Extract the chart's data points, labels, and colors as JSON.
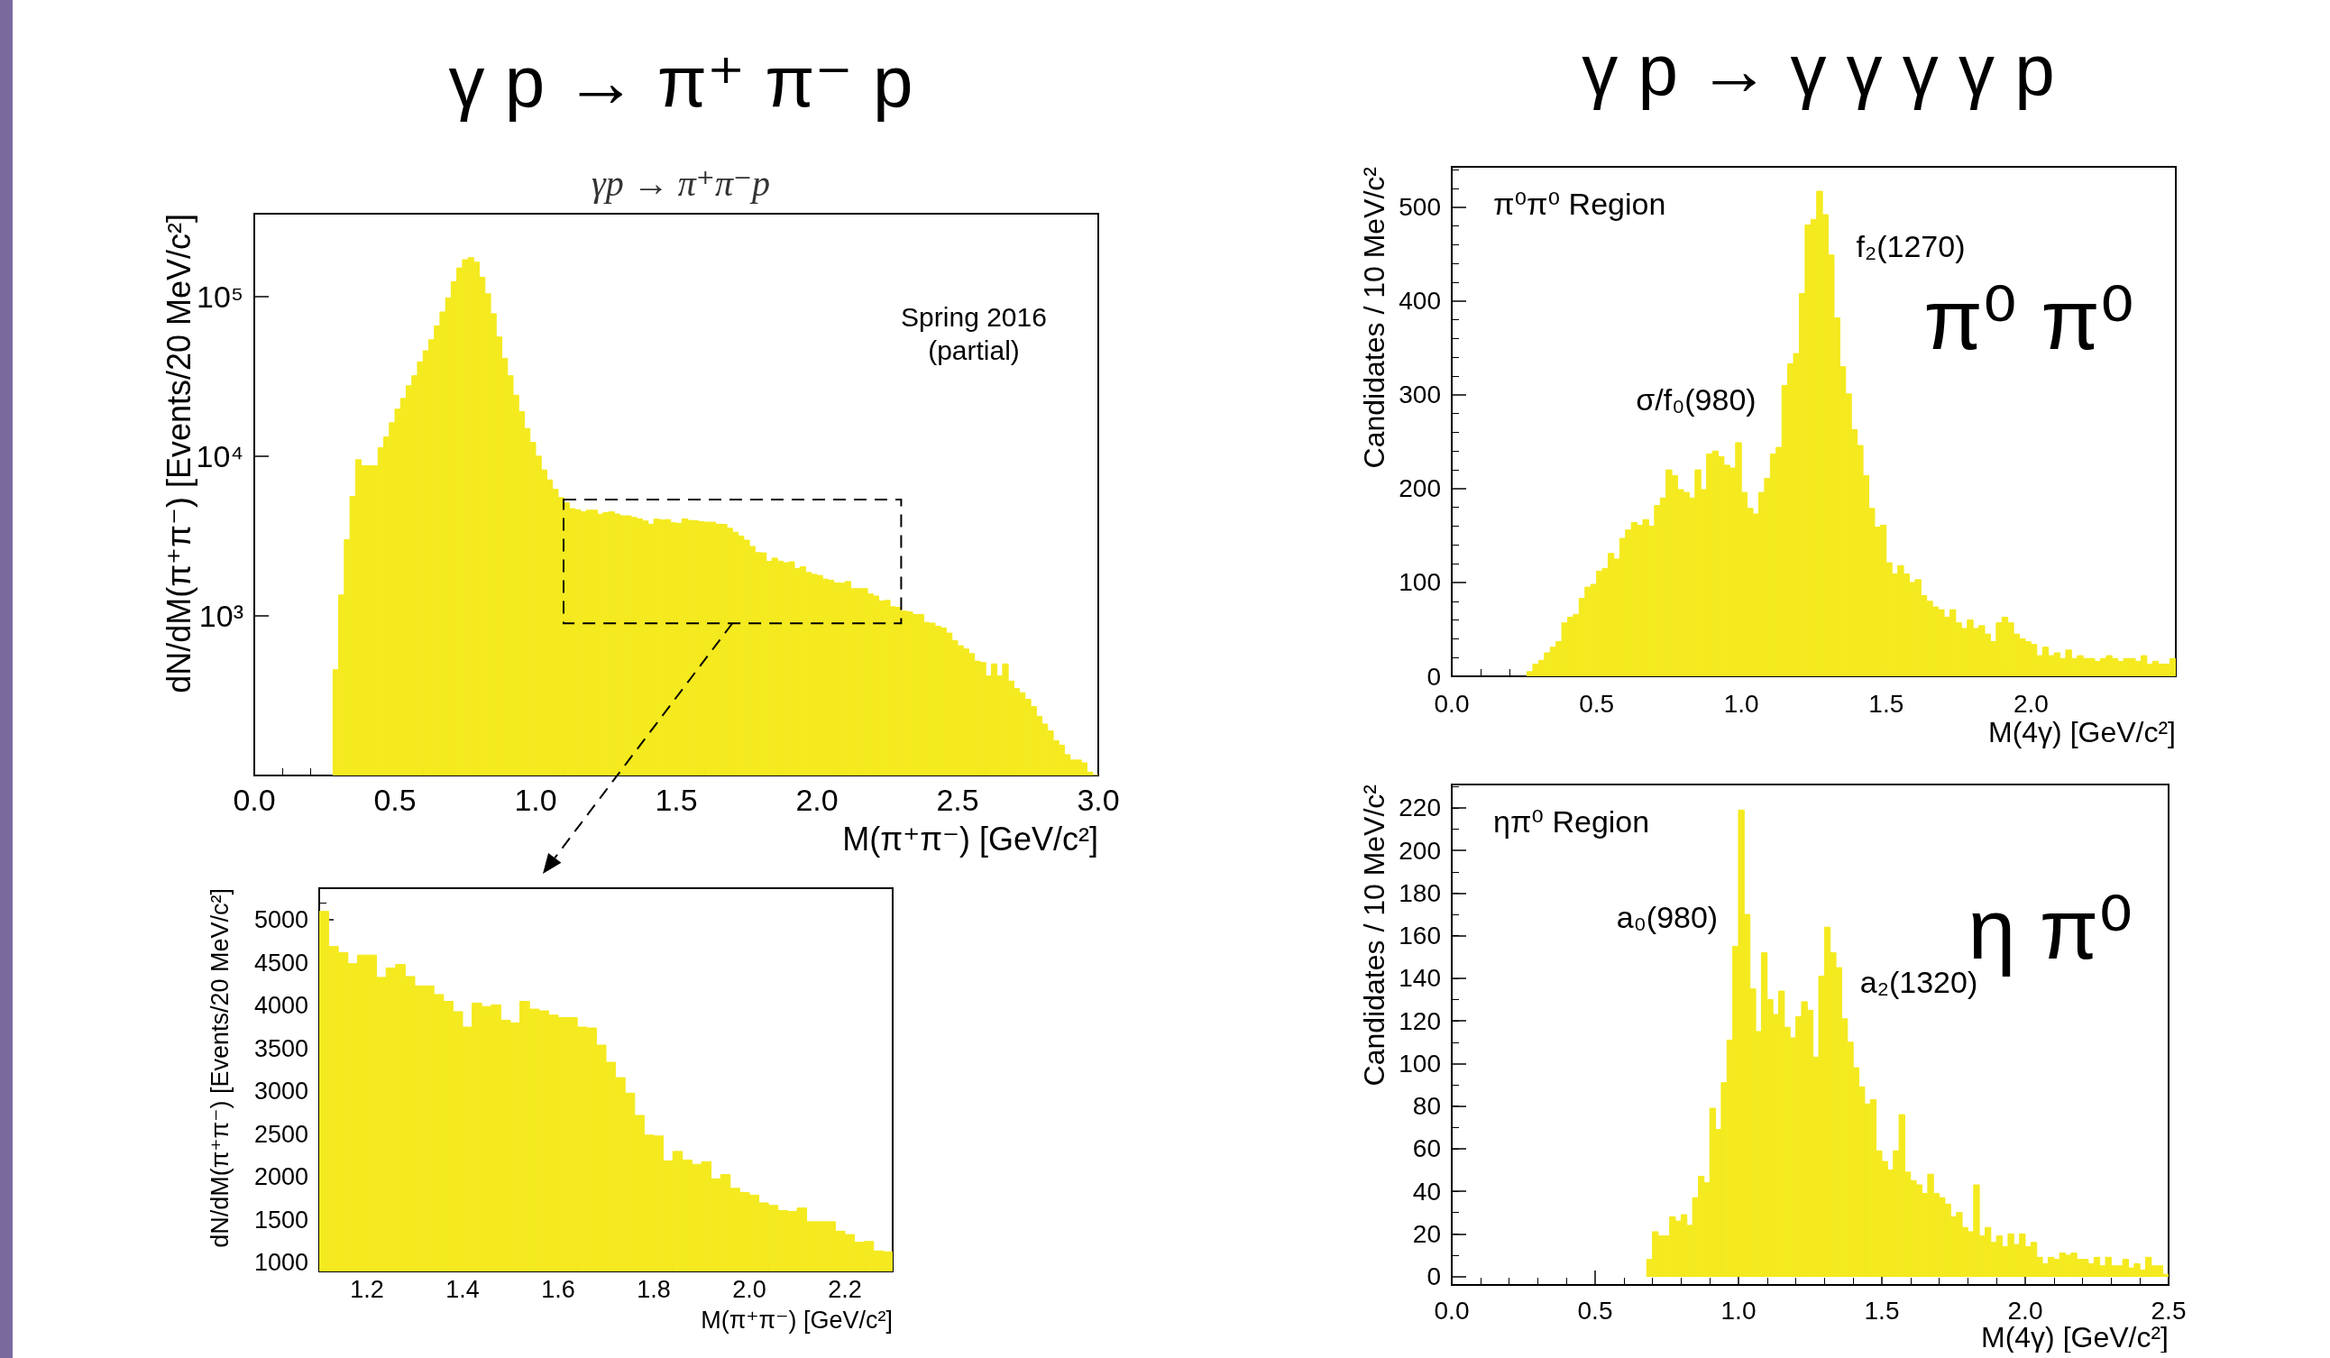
{
  "chart_data": [
    {
      "type": "histogram",
      "title": "γ p → π⁺ π⁻ p",
      "subtitle": "γp → π⁺π⁻p",
      "xlabel": "M(π⁺π⁻) [GeV/c²]",
      "ylabel": "dN/dM(π⁺π⁻) [Events/20 MeV/c²]",
      "color": "#f4ea1f",
      "log": "y",
      "xlim": [
        0,
        3
      ],
      "ylim": [
        100,
        330000
      ],
      "xticks": [
        {
          "value": 0,
          "label": "0.0"
        },
        0.5,
        {
          "value": 1,
          "label": "1.0"
        },
        1.5,
        {
          "value": 2,
          "label": "2.0"
        },
        2.5,
        {
          "value": 3,
          "label": "3.0"
        }
      ],
      "yticks": [
        {
          "value": 1000,
          "label": "10³"
        },
        {
          "value": 10000,
          "label": "10⁴"
        },
        {
          "value": 100000,
          "label": "10⁵"
        }
      ],
      "annotations": [
        "Spring 2016\n(partial)"
      ],
      "bins": [
        0.28,
        0.3,
        0.32,
        0.34,
        0.36,
        0.38,
        0.4,
        0.42,
        0.44,
        0.46,
        0.48,
        0.5,
        0.52,
        0.54,
        0.56,
        0.58,
        0.6,
        0.62,
        0.64,
        0.66,
        0.68,
        0.7,
        0.72,
        0.74,
        0.76,
        0.78,
        0.8,
        0.82,
        0.84,
        0.86,
        0.88,
        0.9,
        0.92,
        0.94,
        0.96,
        0.98,
        1,
        1.02,
        1.04,
        1.06,
        1.08,
        1.1,
        1.12,
        1.14,
        1.16,
        1.18,
        1.2,
        1.22,
        1.24,
        1.26,
        1.28,
        1.3,
        1.32,
        1.34,
        1.36,
        1.38,
        1.4,
        1.42,
        1.44,
        1.46,
        1.48,
        1.5,
        1.52,
        1.54,
        1.56,
        1.58,
        1.6,
        1.62,
        1.64,
        1.66,
        1.68,
        1.7,
        1.72,
        1.74,
        1.76,
        1.78,
        1.8,
        1.82,
        1.84,
        1.86,
        1.88,
        1.9,
        1.92,
        1.94,
        1.96,
        1.98,
        2,
        2.02,
        2.04,
        2.06,
        2.08,
        2.1,
        2.12,
        2.14,
        2.16,
        2.18,
        2.2,
        2.22,
        2.24,
        2.26,
        2.28,
        2.3,
        2.32,
        2.34,
        2.36,
        2.38,
        2.4,
        2.42,
        2.44,
        2.46,
        2.48,
        2.5,
        2.52,
        2.54,
        2.56,
        2.58,
        2.6,
        2.62,
        2.64,
        2.66,
        2.68,
        2.7,
        2.72,
        2.74,
        2.76,
        2.78,
        2.8,
        2.82,
        2.84,
        2.86,
        2.88,
        2.9,
        2.92,
        2.94,
        2.96,
        2.98,
        3
      ],
      "values": [
        460,
        1350,
        3000,
        5600,
        9500,
        8700,
        8700,
        8700,
        11300,
        13200,
        16200,
        19700,
        23000,
        27600,
        31900,
        39000,
        45700,
        53600,
        65500,
        80000,
        98000,
        124000,
        151000,
        170000,
        175000,
        164000,
        132000,
        104000,
        78000,
        55800,
        41000,
        31900,
        24100,
        19000,
        14900,
        12200,
        10000,
        8200,
        7100,
        6200,
        5500,
        5100,
        4690,
        4620,
        4490,
        4590,
        4590,
        4330,
        4440,
        4480,
        4340,
        4230,
        4230,
        4130,
        4050,
        3930,
        3750,
        4030,
        3990,
        4010,
        3830,
        3800,
        4050,
        3960,
        3940,
        3890,
        3860,
        3860,
        3750,
        3740,
        3540,
        3340,
        3160,
        2980,
        2720,
        2490,
        2480,
        2190,
        2300,
        2200,
        2150,
        2180,
        1980,
        2030,
        1870,
        1820,
        1790,
        1700,
        1670,
        1610,
        1600,
        1640,
        1480,
        1480,
        1480,
        1370,
        1330,
        1240,
        1250,
        1140,
        1130,
        1070,
        1060,
        1020,
        1020,
        910,
        900,
        860,
        840,
        780,
        700,
        650,
        620,
        580,
        520,
        510,
        420,
        500,
        420,
        500,
        390,
        350,
        330,
        300,
        270,
        235,
        210,
        190,
        165,
        155,
        135,
        125,
        125,
        120,
        105,
        100
      ]
    },
    {
      "type": "histogram",
      "xlabel": "M(π⁺π⁻) [GeV/c²]",
      "ylabel": "dN/dM(π⁺π⁻) [Events/20 MeV/c²]",
      "color": "#f4ea1f",
      "xlim": [
        1.1,
        2.3
      ],
      "ylim": [
        900,
        5370
      ],
      "xticks": [
        1.2,
        1.4,
        1.6,
        1.8,
        {
          "value": 2,
          "label": "2.0"
        },
        2.2
      ],
      "yticks": [
        1000,
        1500,
        2000,
        2500,
        3000,
        3500,
        4000,
        4500,
        5000
      ],
      "bins": [
        1.1,
        1.12,
        1.14,
        1.16,
        1.18,
        1.2,
        1.22,
        1.24,
        1.26,
        1.28,
        1.3,
        1.32,
        1.34,
        1.36,
        1.38,
        1.4,
        1.42,
        1.44,
        1.46,
        1.48,
        1.5,
        1.52,
        1.54,
        1.56,
        1.58,
        1.6,
        1.62,
        1.64,
        1.66,
        1.68,
        1.7,
        1.72,
        1.74,
        1.76,
        1.78,
        1.8,
        1.82,
        1.84,
        1.86,
        1.88,
        1.9,
        1.92,
        1.94,
        1.96,
        1.98,
        2,
        2.02,
        2.04,
        2.06,
        2.08,
        2.1,
        2.12,
        2.14,
        2.16,
        2.18,
        2.2,
        2.22,
        2.24,
        2.26,
        2.28,
        2.3
      ],
      "values": [
        5100,
        4690,
        4620,
        4490,
        4590,
        4590,
        4330,
        4440,
        4480,
        4340,
        4230,
        4230,
        4130,
        4050,
        3930,
        3750,
        4030,
        3990,
        4010,
        3830,
        3800,
        4050,
        3960,
        3940,
        3890,
        3860,
        3860,
        3750,
        3740,
        3540,
        3340,
        3160,
        2980,
        2720,
        2490,
        2480,
        2190,
        2300,
        2200,
        2150,
        2180,
        1980,
        2030,
        1870,
        1820,
        1790,
        1700,
        1670,
        1610,
        1600,
        1640,
        1480,
        1480,
        1480,
        1370,
        1330,
        1240,
        1250,
        1140,
        1130
      ]
    },
    {
      "type": "histogram",
      "title": "γ p → γ γ γ γ p",
      "xlabel": "M(4γ) [GeV/c²]",
      "ylabel": "Candidates / 10 MeV/c²",
      "color": "#f4ea1f",
      "xlim": [
        0,
        2.5
      ],
      "ylim": [
        0,
        543
      ],
      "xticks": [
        {
          "value": 0,
          "label": "0.0"
        },
        0.5,
        {
          "value": 1,
          "label": "1.0"
        },
        1.5,
        {
          "value": 2,
          "label": "2.0"
        }
      ],
      "yticks": [
        0,
        100,
        200,
        300,
        400,
        500
      ],
      "annotations": [
        "π⁰π⁰ Region",
        "σ/f₀(980)",
        "f₂(1270)",
        "π⁰ π⁰"
      ],
      "bins": [
        0.26,
        0.28,
        0.3,
        0.32,
        0.34,
        0.36,
        0.38,
        0.4,
        0.42,
        0.44,
        0.46,
        0.48,
        0.5,
        0.52,
        0.54,
        0.56,
        0.58,
        0.6,
        0.62,
        0.64,
        0.66,
        0.68,
        0.7,
        0.72,
        0.74,
        0.76,
        0.78,
        0.8,
        0.82,
        0.84,
        0.86,
        0.88,
        0.9,
        0.92,
        0.94,
        0.96,
        0.98,
        1,
        1.02,
        1.04,
        1.06,
        1.08,
        1.1,
        1.12,
        1.14,
        1.16,
        1.18,
        1.2,
        1.22,
        1.24,
        1.26,
        1.28,
        1.3,
        1.32,
        1.34,
        1.36,
        1.38,
        1.4,
        1.42,
        1.44,
        1.46,
        1.48,
        1.5,
        1.52,
        1.54,
        1.56,
        1.58,
        1.6,
        1.62,
        1.64,
        1.66,
        1.68,
        1.7,
        1.72,
        1.74,
        1.76,
        1.78,
        1.8,
        1.82,
        1.84,
        1.86,
        1.88,
        1.9,
        1.92,
        1.94,
        1.96,
        1.98,
        2,
        2.02,
        2.04,
        2.06,
        2.08,
        2.1,
        2.12,
        2.14,
        2.16,
        2.18,
        2.2,
        2.22,
        2.24,
        2.26,
        2.28,
        2.3,
        2.32,
        2.34,
        2.36,
        2.38,
        2.4,
        2.42,
        2.44,
        2.46,
        2.48,
        2.5
      ],
      "values": [
        5,
        13,
        17,
        25,
        31,
        37,
        57,
        63,
        66,
        83,
        95,
        98,
        112,
        115,
        131,
        125,
        147,
        156,
        164,
        161,
        167,
        160,
        182,
        190,
        220,
        214,
        199,
        196,
        190,
        220,
        199,
        237,
        240,
        234,
        225,
        222,
        249,
        196,
        179,
        173,
        196,
        211,
        237,
        244,
        310,
        333,
        344,
        408,
        481,
        487,
        517,
        492,
        449,
        382,
        330,
        301,
        263,
        246,
        214,
        179,
        159,
        161,
        121,
        109,
        118,
        109,
        100,
        103,
        86,
        80,
        74,
        71,
        63,
        71,
        57,
        51,
        60,
        51,
        54,
        45,
        37,
        57,
        63,
        57,
        45,
        40,
        37,
        34,
        22,
        31,
        22,
        25,
        19,
        28,
        19,
        22,
        19,
        19,
        16,
        19,
        22,
        19,
        16,
        19,
        19,
        16,
        22,
        13,
        16,
        13,
        13,
        19
      ]
    },
    {
      "type": "histogram",
      "xlabel": "M(4γ) [GeV/c²]",
      "ylabel": "Candidates / 10 MeV/c²",
      "color": "#f4ea1f",
      "xlim": [
        0,
        2.5
      ],
      "ylim": [
        -4,
        231
      ],
      "xticks": [
        {
          "value": 0,
          "label": "0.0"
        },
        0.5,
        {
          "value": 1,
          "label": "1.0"
        },
        1.5,
        {
          "value": 2,
          "label": "2.0"
        },
        2.5
      ],
      "yticks": [
        0,
        20,
        40,
        60,
        80,
        100,
        120,
        140,
        160,
        180,
        200,
        220
      ],
      "annotations": [
        "ηπ⁰ Region",
        "a₀(980)",
        "a₂(1320)",
        "η π⁰"
      ],
      "bins": [
        0.68,
        0.7,
        0.72,
        0.74,
        0.76,
        0.78,
        0.8,
        0.82,
        0.84,
        0.86,
        0.88,
        0.9,
        0.92,
        0.94,
        0.96,
        0.98,
        1,
        1.02,
        1.04,
        1.06,
        1.08,
        1.1,
        1.12,
        1.14,
        1.16,
        1.18,
        1.2,
        1.22,
        1.24,
        1.26,
        1.28,
        1.3,
        1.32,
        1.34,
        1.36,
        1.38,
        1.4,
        1.42,
        1.44,
        1.46,
        1.48,
        1.5,
        1.52,
        1.54,
        1.56,
        1.58,
        1.6,
        1.62,
        1.64,
        1.66,
        1.68,
        1.7,
        1.72,
        1.74,
        1.76,
        1.78,
        1.8,
        1.82,
        1.84,
        1.86,
        1.88,
        1.9,
        1.92,
        1.94,
        1.96,
        1.98,
        2,
        2.02,
        2.04,
        2.06,
        2.08,
        2.1,
        2.12,
        2.14,
        2.16,
        2.18,
        2.2,
        2.22,
        2.24,
        2.26,
        2.28,
        2.3,
        2.32,
        2.34,
        2.36,
        2.38,
        2.4,
        2.42,
        2.44,
        2.46,
        2.48,
        2.5
      ],
      "values": [
        8,
        21,
        19,
        19,
        28,
        26,
        29,
        24,
        37,
        47,
        44,
        79,
        69,
        91,
        111,
        155,
        219,
        170,
        135,
        115,
        152,
        130,
        123,
        134,
        117,
        112,
        122,
        129,
        125,
        103,
        141,
        164,
        152,
        145,
        121,
        110,
        98,
        89,
        81,
        83,
        59,
        54,
        50,
        59,
        76,
        49,
        45,
        43,
        39,
        48,
        39,
        37,
        34,
        28,
        30,
        23,
        21,
        43,
        19,
        23,
        16,
        19,
        14,
        20,
        15,
        20,
        14,
        16,
        9,
        6,
        9,
        8,
        11,
        10,
        11,
        8,
        8,
        6,
        9,
        5,
        9,
        5,
        5,
        8,
        4,
        6,
        3,
        9,
        5,
        5,
        1
      ]
    }
  ]
}
